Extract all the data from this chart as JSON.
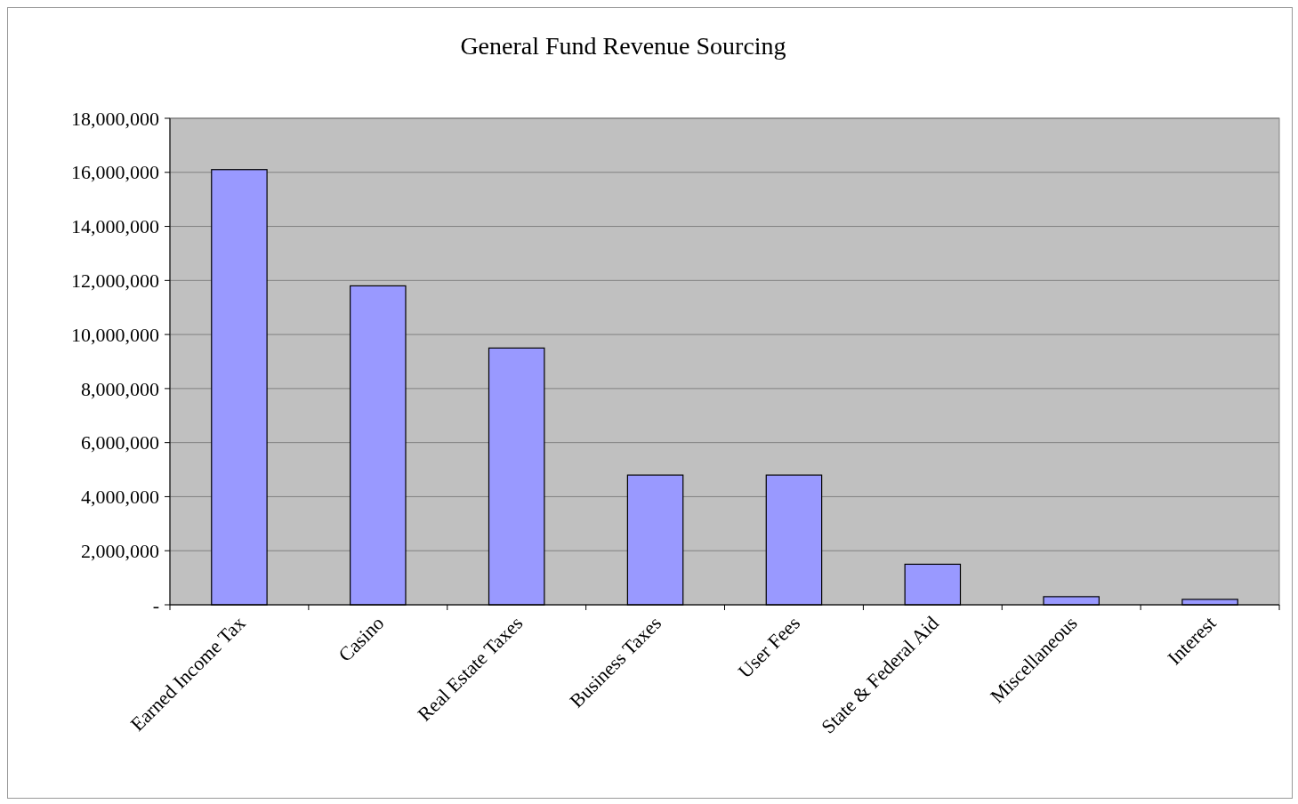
{
  "chart_data": {
    "type": "bar",
    "title": "General Fund Revenue Sourcing",
    "categories": [
      "Earned Income Tax",
      "Casino",
      "Real Estate Taxes",
      "Business Taxes",
      "User Fees",
      "State & Federal Aid",
      "Miscellaneous",
      "Interest"
    ],
    "values": [
      16100000,
      11800000,
      9500000,
      4800000,
      4800000,
      1500000,
      300000,
      200000
    ],
    "color": "#9999ff",
    "ylim": [
      0,
      18000000
    ],
    "yticks": [
      {
        "value": 0,
        "label": "-"
      },
      {
        "value": 2000000,
        "label": "2,000,000"
      },
      {
        "value": 4000000,
        "label": "4,000,000"
      },
      {
        "value": 6000000,
        "label": "6,000,000"
      },
      {
        "value": 8000000,
        "label": "8,000,000"
      },
      {
        "value": 10000000,
        "label": "10,000,000"
      },
      {
        "value": 12000000,
        "label": "12,000,000"
      },
      {
        "value": 14000000,
        "label": "14,000,000"
      },
      {
        "value": 16000000,
        "label": "16,000,000"
      },
      {
        "value": 18000000,
        "label": "18,000,000"
      }
    ],
    "grid": "y"
  }
}
